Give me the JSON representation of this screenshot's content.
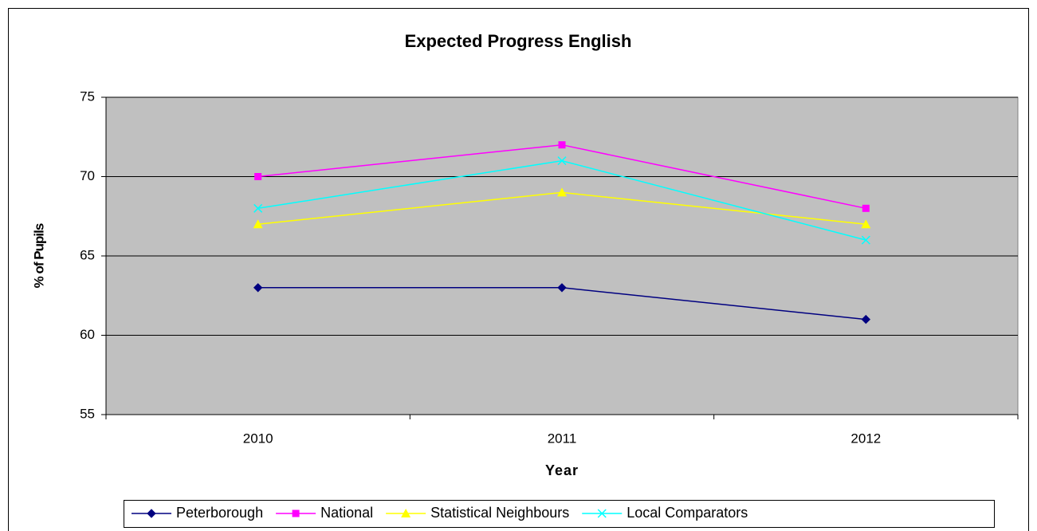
{
  "chart_data": {
    "type": "line",
    "title": "Expected Progress English",
    "x_label": "Year",
    "y_label": "% of Pupils",
    "categories": [
      "2010",
      "2011",
      "2012"
    ],
    "series": [
      {
        "name": "Peterborough",
        "color": "#000080",
        "marker": "diamond",
        "values": [
          63,
          63,
          61
        ]
      },
      {
        "name": "National",
        "color": "#ff00ff",
        "marker": "square",
        "values": [
          70,
          72,
          68
        ]
      },
      {
        "name": "Statistical Neighbours",
        "color": "#ffff00",
        "marker": "triangle",
        "values": [
          67,
          69,
          67
        ]
      },
      {
        "name": "Local Comparators",
        "color": "#00ffff",
        "marker": "x",
        "values": [
          68,
          71,
          66
        ]
      }
    ],
    "ylim": [
      55,
      75
    ],
    "yticks": [
      55,
      60,
      65,
      70,
      75
    ],
    "grid": true,
    "legend": "bottom"
  }
}
